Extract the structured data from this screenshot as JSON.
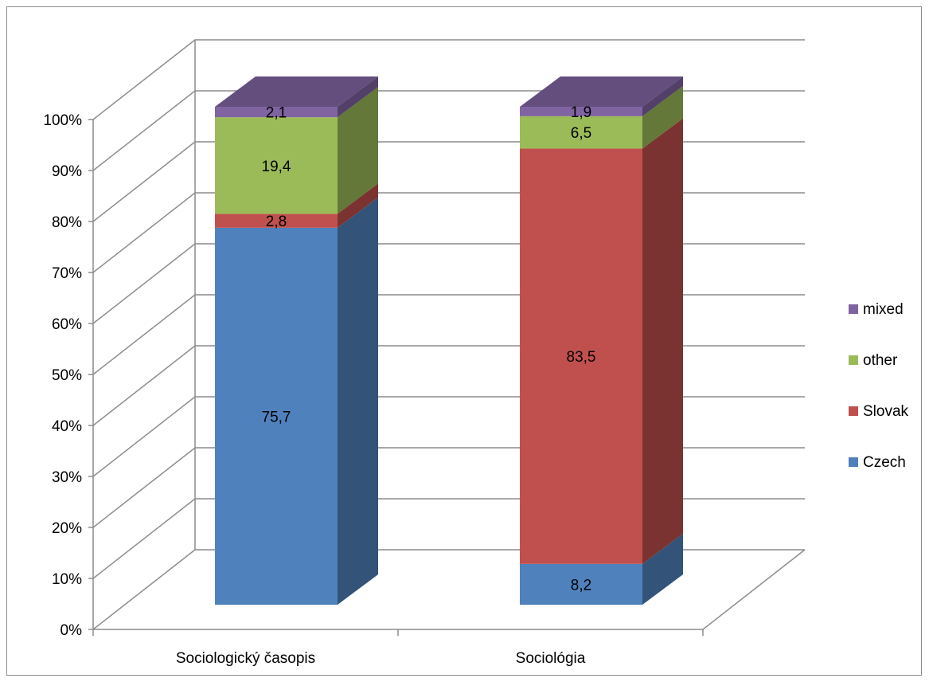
{
  "chart_data": {
    "type": "bar",
    "subtype": "3d-stacked-percent",
    "title": "",
    "xlabel": "",
    "ylabel": "",
    "ylim": [
      0,
      100
    ],
    "y_ticks": [
      "0%",
      "10%",
      "20%",
      "30%",
      "40%",
      "50%",
      "60%",
      "70%",
      "80%",
      "90%",
      "100%"
    ],
    "categories": [
      "Sociologický časopis",
      "Sociológia"
    ],
    "series": [
      {
        "name": "Czech",
        "color": "#4F81BD",
        "values": [
          75.7,
          8.2
        ],
        "labels": [
          "75,7",
          "8,2"
        ]
      },
      {
        "name": "Slovak",
        "color": "#C0504D",
        "values": [
          2.8,
          83.5
        ],
        "labels": [
          "2,8",
          "83,5"
        ]
      },
      {
        "name": "other",
        "color": "#9BBB59",
        "values": [
          19.4,
          6.5
        ],
        "labels": [
          "19,4",
          "6,5"
        ]
      },
      {
        "name": "mixed",
        "color": "#8064A2",
        "values": [
          2.1,
          1.9
        ],
        "labels": [
          "2,1",
          "1,9"
        ]
      }
    ],
    "legend_order": [
      "mixed",
      "other",
      "Slovak",
      "Czech"
    ],
    "legend_position": "right",
    "grid": true
  }
}
